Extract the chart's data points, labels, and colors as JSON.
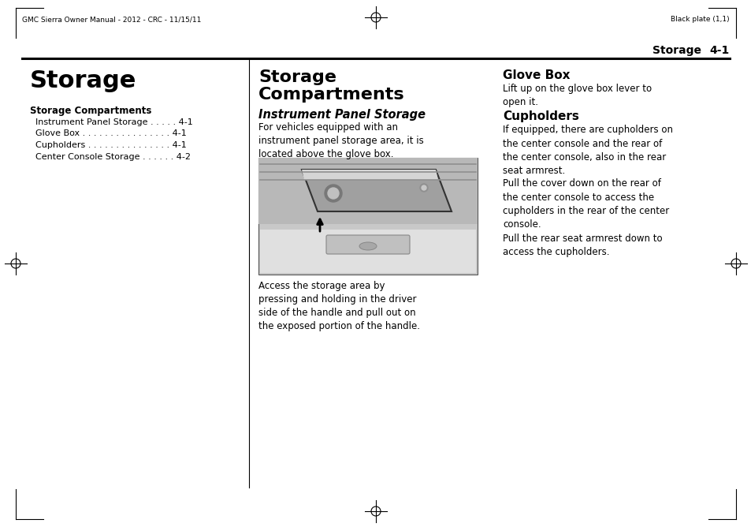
{
  "bg_color": "#ffffff",
  "header_left": "GMC Sierra Owner Manual - 2012 - CRC - 11/15/11",
  "header_right": "Black plate (1,1)",
  "col1_title": "Storage",
  "col1_subtitle": "Storage Compartments",
  "col1_toc": [
    [
      "  Instrument Panel Storage ",
      ". . . . . 4-1"
    ],
    [
      "  Glove Box ",
      ". . . . . . . . . . . . . . . . 4-1"
    ],
    [
      "  Cupholders ",
      ". . . . . . . . . . . . . . . 4-1"
    ],
    [
      "  Center Console Storage ",
      ". . . . . . 4-2"
    ]
  ],
  "col2_title": "Storage\nCompartments",
  "col2_section": "Instrument Panel Storage",
  "col2_text1": "For vehicles equipped with an\ninstrument panel storage area, it is\nlocated above the glove box.",
  "col2_caption": "Access the storage area by\npressing and holding in the driver\nside of the handle and pull out on\nthe exposed portion of the handle.",
  "col3_title1": "Glove Box",
  "col3_text1": "Lift up on the glove box lever to\nopen it.",
  "col3_title2": "Cupholders",
  "col3_text2a": "If equipped, there are cupholders on\nthe center console and the rear of\nthe center console, also in the rear\nseat armrest.",
  "col3_text2b": "Pull the cover down on the rear of\nthe center console to access the\ncupholders in the rear of the center\nconsole.",
  "col3_text2c": "Pull the rear seat armrest down to\naccess the cupholders."
}
